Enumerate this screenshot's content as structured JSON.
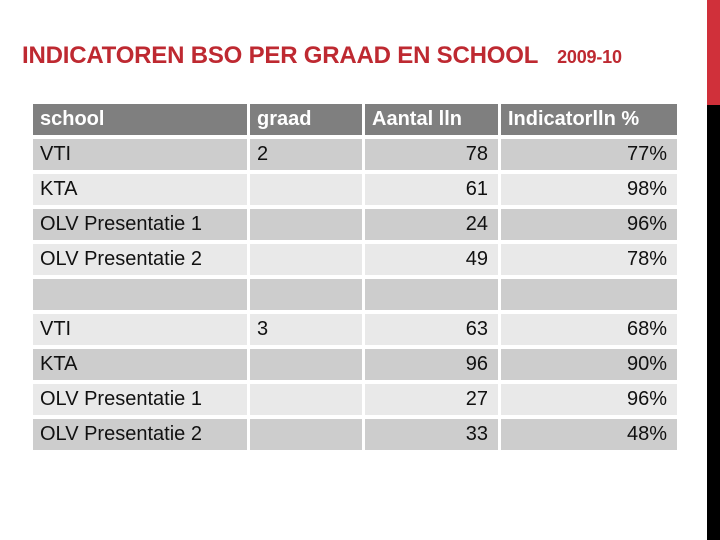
{
  "title": {
    "main": "INDICATOREN BSO PER GRAAD EN SCHOOL",
    "year": "2009-10"
  },
  "colors": {
    "title_red": "#BE2931",
    "bar_red": "#D0303A",
    "bar_black": "#000000",
    "header_bg": "#7F7F7F",
    "header_text": "#FFFFFF",
    "band_dark": "#CDCDCD",
    "band_light": "#E9E9E9"
  },
  "table": {
    "columns": [
      "school",
      "graad",
      "Aantal lln",
      "Indicatorlln %"
    ],
    "rows": [
      {
        "school": "VTI",
        "graad": "2",
        "aantal_lln": "78",
        "indicator_pct": "77%"
      },
      {
        "school": "KTA",
        "graad": "",
        "aantal_lln": "61",
        "indicator_pct": "98%"
      },
      {
        "school": "OLV Presentatie 1",
        "graad": "",
        "aantal_lln": "24",
        "indicator_pct": "96%"
      },
      {
        "school": "OLV Presentatie 2",
        "graad": "",
        "aantal_lln": "49",
        "indicator_pct": "78%"
      },
      {
        "school": "",
        "graad": "",
        "aantal_lln": "",
        "indicator_pct": ""
      },
      {
        "school": "VTI",
        "graad": "3",
        "aantal_lln": "63",
        "indicator_pct": "68%"
      },
      {
        "school": "KTA",
        "graad": "",
        "aantal_lln": "96",
        "indicator_pct": "90%"
      },
      {
        "school": "OLV Presentatie 1",
        "graad": "",
        "aantal_lln": "27",
        "indicator_pct": "96%"
      },
      {
        "school": "OLV Presentatie 2",
        "graad": "",
        "aantal_lln": "33",
        "indicator_pct": "48%"
      }
    ]
  }
}
